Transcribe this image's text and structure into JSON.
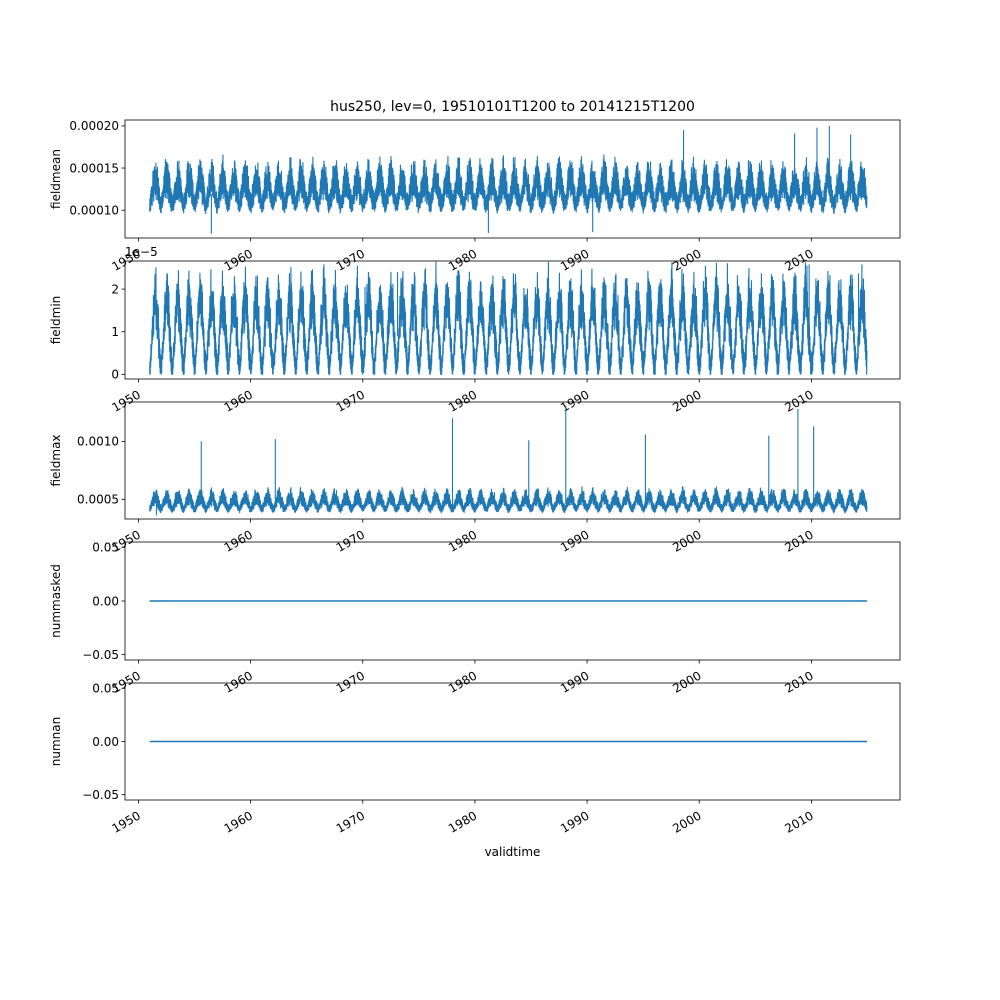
{
  "figure": {
    "title": "hus250, lev=0, 19510101T1200 to 20141215T1200",
    "xlabel": "validtime"
  },
  "colors": {
    "line": "#1f77b4",
    "axes": "#000000",
    "background": "#ffffff"
  },
  "chart_data": [
    {
      "type": "line",
      "ylabel": "fieldmean",
      "xlim": [
        1948.8,
        2017.9
      ],
      "ylim": [
        6.7e-05,
        0.000207
      ],
      "yticks": [
        0.0001,
        0.00015,
        0.0002
      ],
      "ytick_labels": [
        "0.00010",
        "0.00015",
        "0.00020"
      ],
      "offset_label": "",
      "series": [
        {
          "x_range": [
            1951.0,
            2014.96
          ],
          "baseline": 0.000105,
          "seasonal_amplitude": 2.8e-05,
          "noise": 1e-05,
          "notable_points": [
            {
              "x": 1956.5,
              "y": 7.2e-05
            },
            {
              "x": 1981.2,
              "y": 7.3e-05
            },
            {
              "x": 1990.5,
              "y": 7.4e-05
            },
            {
              "x": 2011.6,
              "y": 0.0002
            },
            {
              "x": 2010.5,
              "y": 0.000198
            },
            {
              "x": 1998.6,
              "y": 0.000195
            },
            {
              "x": 2008.5,
              "y": 0.000191
            },
            {
              "x": 2013.5,
              "y": 0.00019
            }
          ]
        }
      ]
    },
    {
      "type": "line",
      "ylabel": "fieldmin",
      "xlim": [
        1948.8,
        2017.9
      ],
      "ylim": [
        -1.1e-06,
        2.66e-05
      ],
      "yticks": [
        0,
        1e-05,
        2e-05
      ],
      "ytick_labels": [
        "0",
        "1",
        "2"
      ],
      "offset_label": "1e−5",
      "series": [
        {
          "x_range": [
            1951.0,
            2014.96
          ],
          "baseline": 1e-06,
          "seasonal_amplitude": 1.6e-05,
          "noise": 2.5e-06,
          "notable_points": [
            {
              "x": 1973.1,
              "y": 2.4e-05
            },
            {
              "x": 2009.8,
              "y": 2.58e-05
            },
            {
              "x": 2014.2,
              "y": 2.37e-05
            },
            {
              "x": 1970.2,
              "y": 2.05e-05
            }
          ]
        }
      ]
    },
    {
      "type": "line",
      "ylabel": "fieldmax",
      "xlim": [
        1948.8,
        2017.9
      ],
      "ylim": [
        0.00033,
        0.00134
      ],
      "yticks": [
        0.0005,
        0.001
      ],
      "ytick_labels": [
        "0.0005",
        "0.0010"
      ],
      "offset_label": "",
      "series": [
        {
          "x_range": [
            1951.0,
            2014.96
          ],
          "baseline": 0.00041,
          "seasonal_amplitude": 0.0001,
          "noise": 3e-05,
          "notable_points": [
            {
              "x": 1988.1,
              "y": 0.00131
            },
            {
              "x": 2008.8,
              "y": 0.00128
            },
            {
              "x": 1978.0,
              "y": 0.0012
            },
            {
              "x": 1955.6,
              "y": 0.001
            },
            {
              "x": 1962.2,
              "y": 0.00102
            },
            {
              "x": 1984.8,
              "y": 0.00101
            },
            {
              "x": 1995.2,
              "y": 0.00106
            },
            {
              "x": 2006.2,
              "y": 0.00105
            },
            {
              "x": 2010.2,
              "y": 0.00113
            },
            {
              "x": 1951.6,
              "y": 0.00036
            }
          ]
        }
      ]
    },
    {
      "type": "line",
      "ylabel": "nummasked",
      "xlim": [
        1948.8,
        2017.9
      ],
      "ylim": [
        -0.055,
        0.055
      ],
      "yticks": [
        -0.05,
        0,
        0.05
      ],
      "ytick_labels": [
        "−0.05",
        "0.00",
        "0.05"
      ],
      "offset_label": "",
      "series": [
        {
          "x": [
            1951.0,
            2014.96
          ],
          "y": [
            0,
            0
          ]
        }
      ]
    },
    {
      "type": "line",
      "ylabel": "numnan",
      "xlim": [
        1948.8,
        2017.9
      ],
      "ylim": [
        -0.055,
        0.055
      ],
      "yticks": [
        -0.05,
        0,
        0.05
      ],
      "ytick_labels": [
        "−0.05",
        "0.00",
        "0.05"
      ],
      "offset_label": "",
      "series": [
        {
          "x": [
            1951.0,
            2014.96
          ],
          "y": [
            0,
            0
          ]
        }
      ]
    }
  ],
  "xticks": [
    1950,
    1960,
    1970,
    1980,
    1990,
    2000,
    2010
  ],
  "xtick_labels": [
    "1950",
    "1960",
    "1970",
    "1980",
    "1990",
    "2000",
    "2010"
  ]
}
